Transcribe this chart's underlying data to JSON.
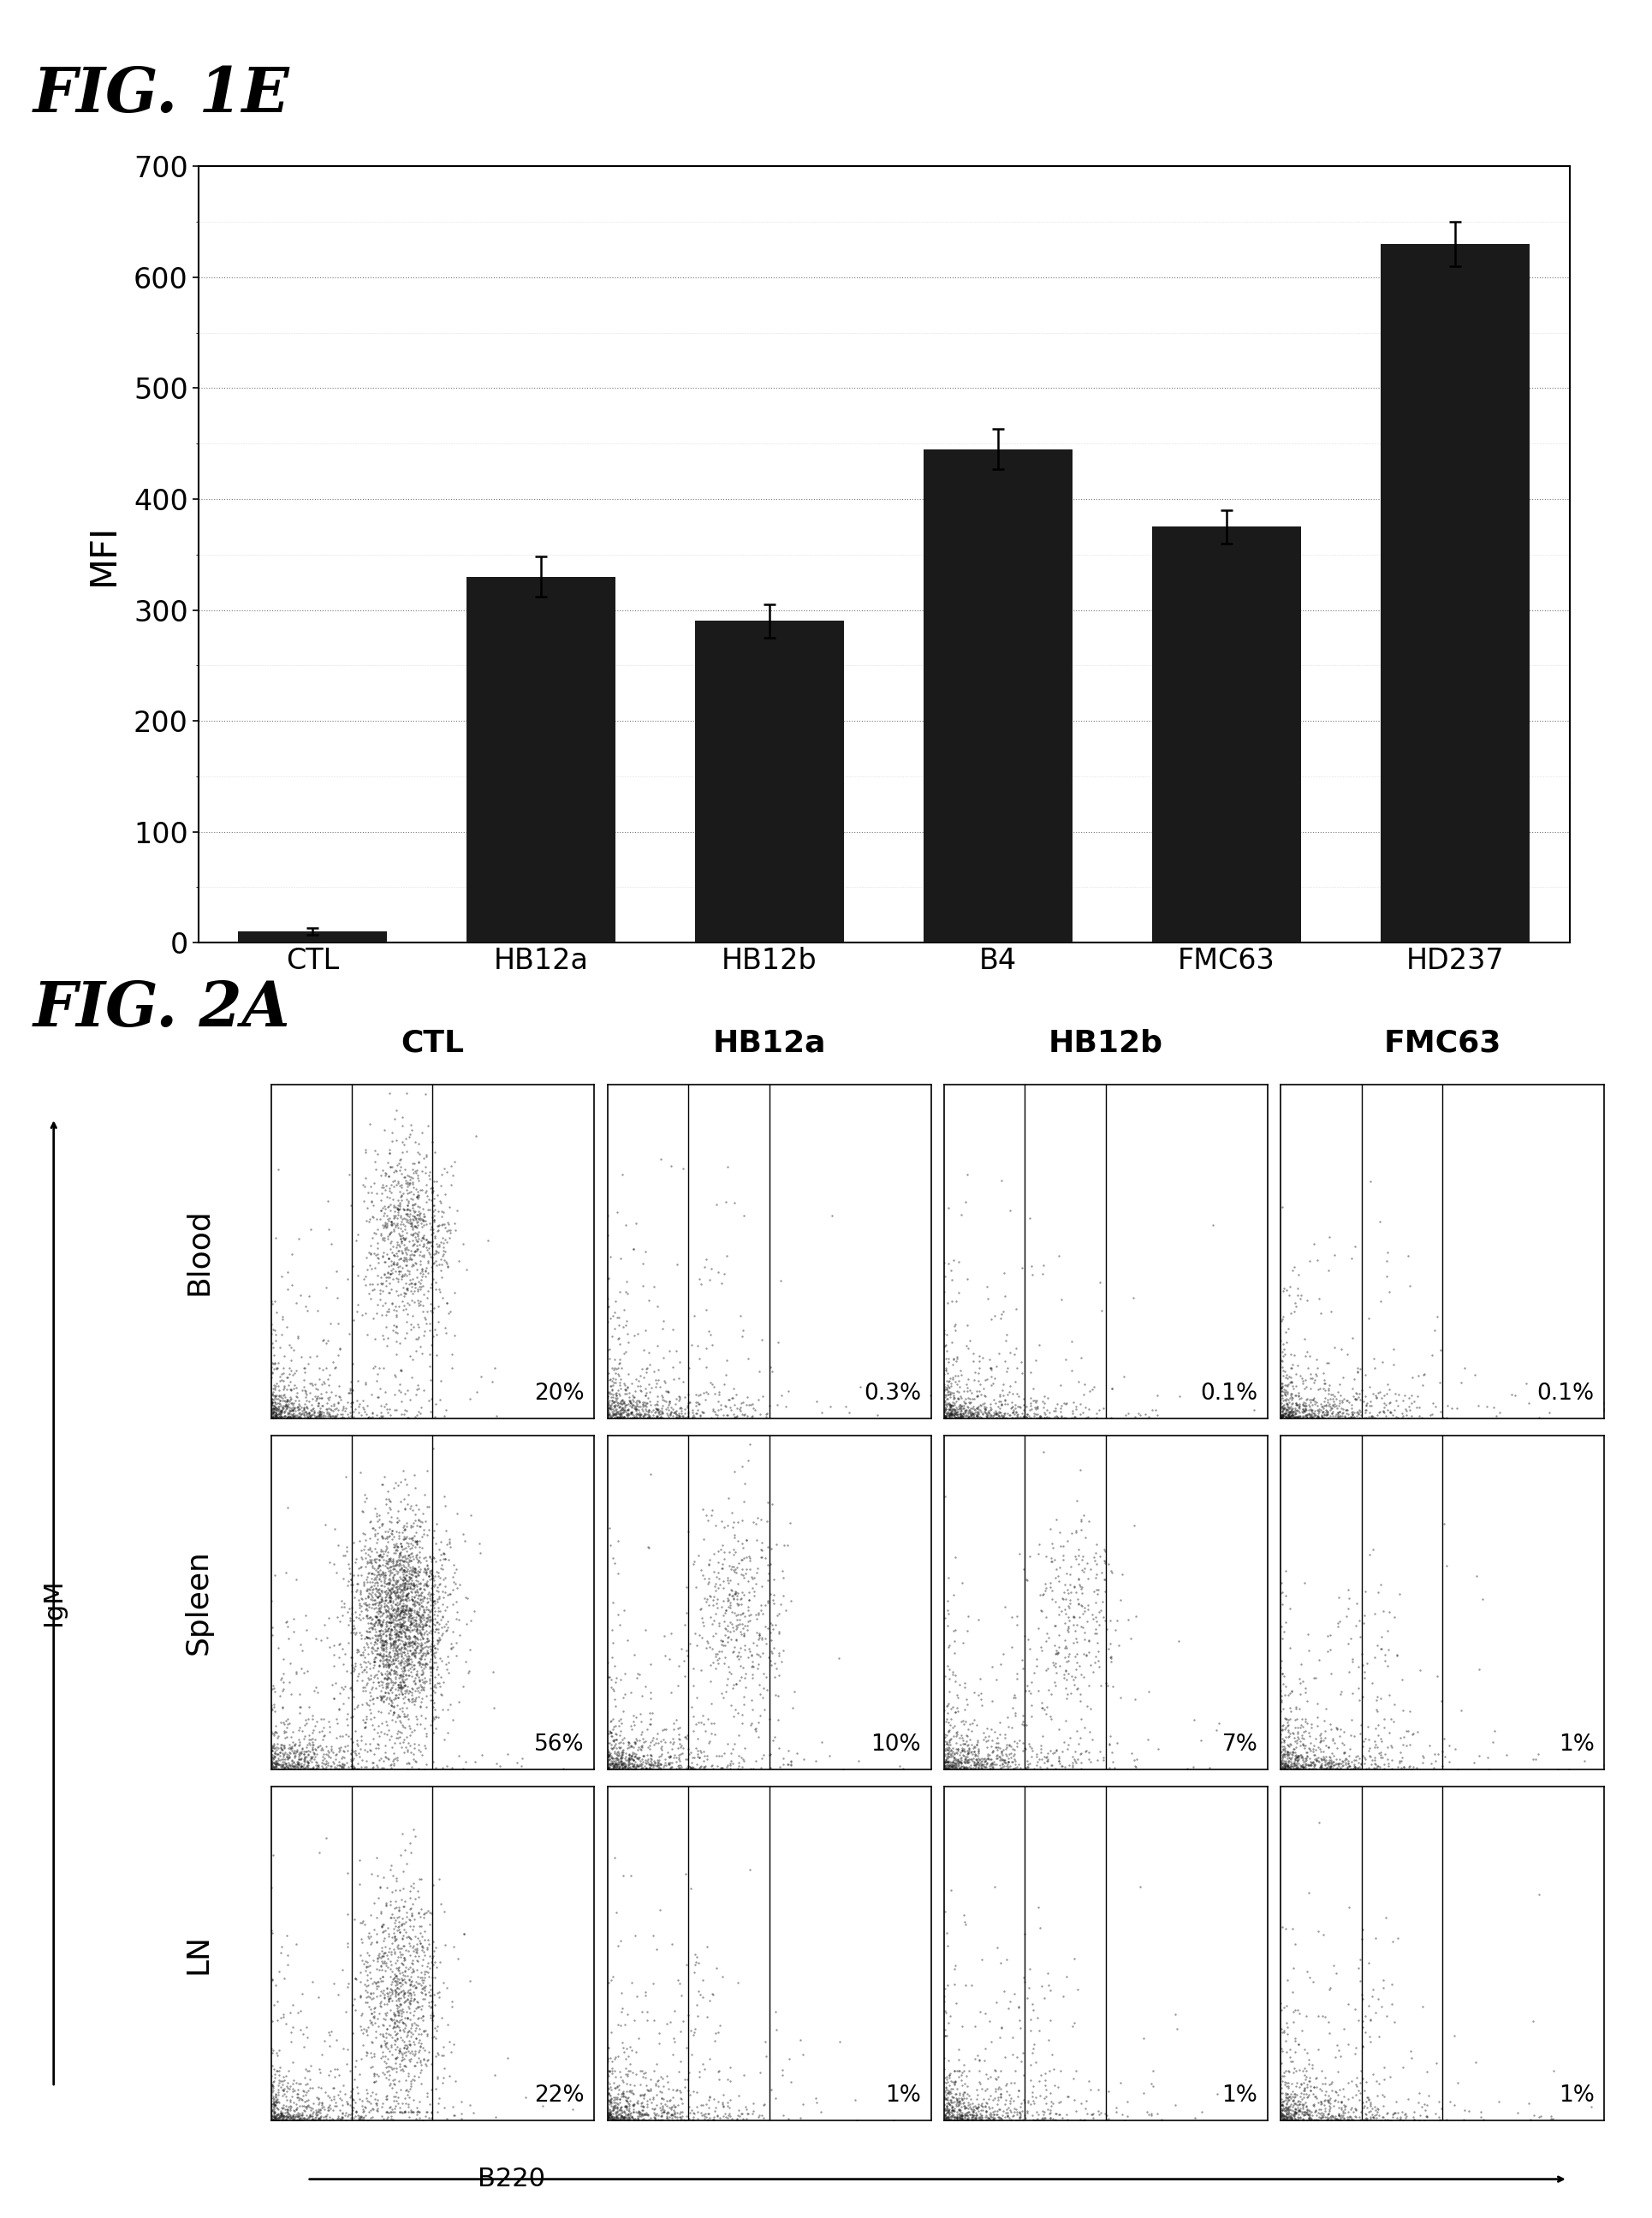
{
  "fig1e_title": "FIG. 1E",
  "fig2a_title": "FIG. 2A",
  "bar_categories": [
    "CTL",
    "HB12a",
    "HB12b",
    "B4",
    "FMC63",
    "HD237"
  ],
  "bar_values": [
    10,
    330,
    290,
    445,
    375,
    630
  ],
  "bar_errors": [
    3,
    18,
    15,
    18,
    15,
    20
  ],
  "bar_color": "#1a1a1a",
  "ylabel": "MFI",
  "ylim": [
    0,
    700
  ],
  "yticks": [
    0,
    100,
    200,
    300,
    400,
    500,
    600,
    700
  ],
  "fig2a_cols": [
    "CTL",
    "HB12a",
    "HB12b",
    "FMC63"
  ],
  "fig2a_rows": [
    "Blood",
    "Spleen",
    "LN"
  ],
  "percentages": [
    [
      "20%",
      "0.3%",
      "0.1%",
      "0.1%"
    ],
    [
      "56%",
      "10%",
      "7%",
      "1%"
    ],
    [
      "22%",
      "1%",
      "1%",
      "1%"
    ]
  ],
  "xlabel_fig2a": "B220",
  "ylabel_fig2a": "IgM",
  "background_color": "#ffffff",
  "text_color": "#000000"
}
